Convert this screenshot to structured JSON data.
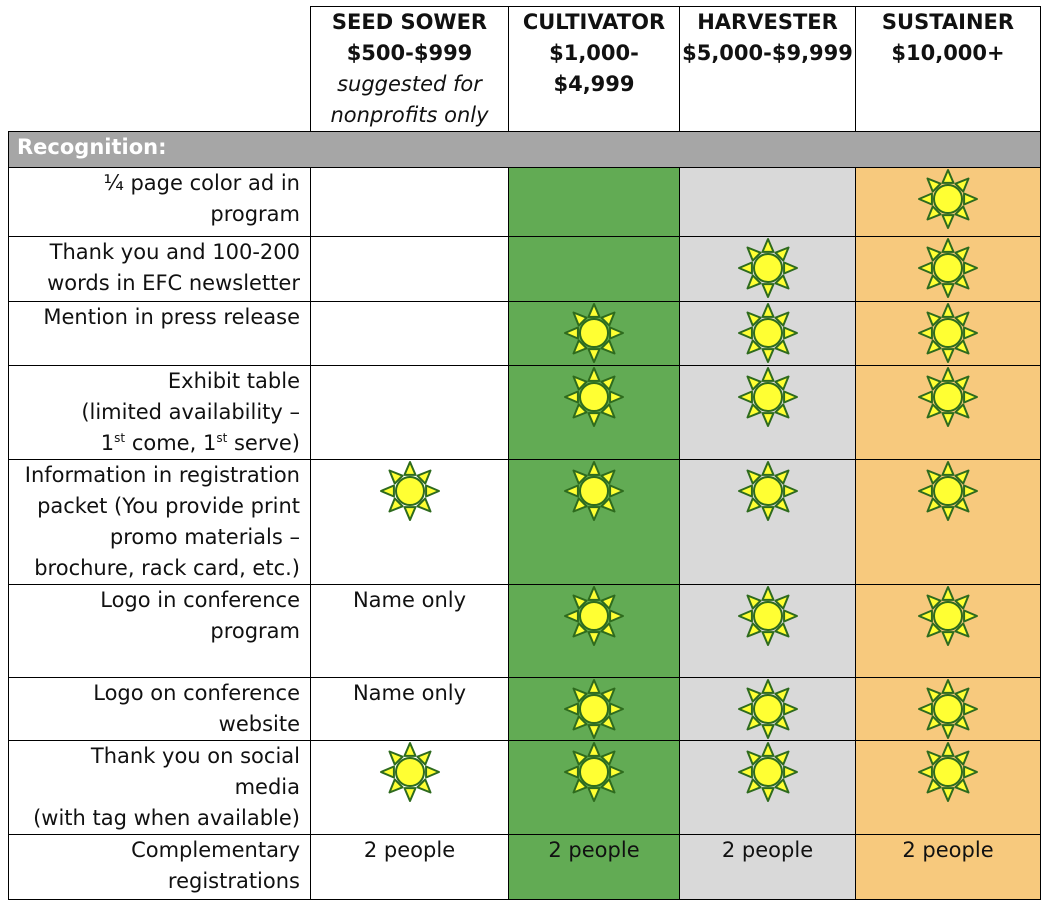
{
  "header": {
    "tiers": [
      {
        "name": "SEED SOWER",
        "price": "$500-$999",
        "note": "suggested for nonprofits only"
      },
      {
        "name": "CULTIVATOR",
        "price": "$1,000-$4,999",
        "price_line1": "$1,000-",
        "price_line2": "$4,999"
      },
      {
        "name": "HARVESTER",
        "price": "$5,000-$9,999"
      },
      {
        "name": "SUSTAINER",
        "price": "$10,000+"
      }
    ]
  },
  "section": {
    "label": "Recognition:"
  },
  "rows": [
    {
      "label_lines": [
        "¼ page color ad in",
        "program"
      ],
      "cells": [
        "",
        "",
        "",
        "sun"
      ]
    },
    {
      "label_lines": [
        "Thank you and 100-200",
        "words in EFC newsletter"
      ],
      "cells": [
        "",
        "",
        "sun",
        "sun"
      ]
    },
    {
      "label_lines": [
        "Mention in press release"
      ],
      "cells": [
        "",
        "sun",
        "sun",
        "sun"
      ]
    },
    {
      "label_lines": [
        "Exhibit table",
        "(limited availability –",
        "1st come, 1st serve)"
      ],
      "cells": [
        "",
        "sun",
        "sun",
        "sun"
      ]
    },
    {
      "label_lines": [
        "Information in registration",
        "packet (You provide print",
        "promo materials –",
        "brochure, rack card, etc.)"
      ],
      "cells": [
        "sun",
        "sun",
        "sun",
        "sun"
      ]
    },
    {
      "label_lines": [
        "Logo in conference",
        "program"
      ],
      "cells": [
        "Name only",
        "sun",
        "sun",
        "sun"
      ]
    },
    {
      "label_lines": [
        "Logo on conference",
        "website"
      ],
      "cells": [
        "Name only",
        "sun",
        "sun",
        "sun"
      ]
    },
    {
      "label_lines": [
        "Thank you on social media",
        "(with tag when available)"
      ],
      "cells": [
        "sun",
        "sun",
        "sun",
        "sun"
      ]
    },
    {
      "label_lines": [
        "Complementary",
        "registrations"
      ],
      "cells": [
        "2 people",
        "2 people",
        "2 people",
        "2 people"
      ]
    }
  ],
  "colors": {
    "cultivator": "#62ab54",
    "harvester": "#d9d9d9",
    "sustainer": "#f7c97d",
    "section": "#a6a6a6",
    "sun_fill": "#ffff33",
    "sun_stroke": "#2e6b1e"
  },
  "icons": {
    "check": "sun-icon"
  }
}
